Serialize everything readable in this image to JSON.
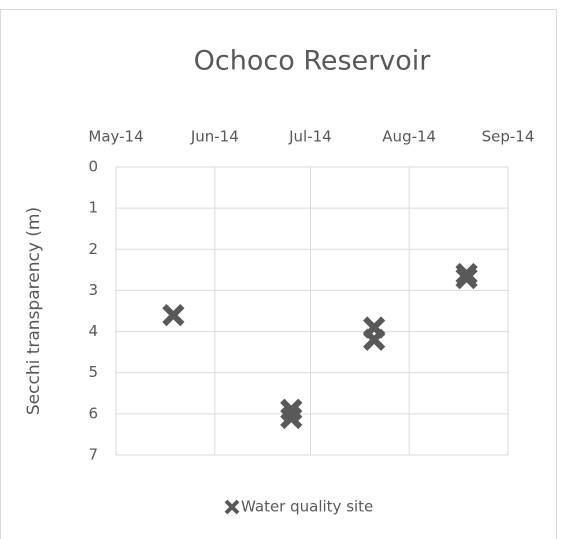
{
  "chart_data": {
    "type": "scatter",
    "title": "Ochoco Reservoir",
    "y_label": "Secchi transparency (m)",
    "series": [
      {
        "name": "Water quality site",
        "color": "#595959",
        "x": [
          41778,
          41815,
          41815,
          41841,
          41841,
          41870,
          41870
        ],
        "values": [
          3.6,
          5.9,
          6.1,
          3.9,
          4.2,
          2.6,
          2.7
        ]
      }
    ],
    "xlim": [
      41760,
      41883
    ],
    "xticks": [
      {
        "value": 41760,
        "label": "May-14"
      },
      {
        "value": 41791,
        "label": "Jun-14"
      },
      {
        "value": 41821,
        "label": "Jul-14"
      },
      {
        "value": 41852,
        "label": "Aug-14"
      },
      {
        "value": 41883,
        "label": "Sep-14"
      }
    ],
    "ylim": [
      0,
      7
    ],
    "yticks": [
      0,
      1,
      2,
      3,
      4,
      5,
      6,
      7
    ],
    "y_inverted": true,
    "x_axis_position": "top",
    "grid": true,
    "legend": "bottom"
  }
}
